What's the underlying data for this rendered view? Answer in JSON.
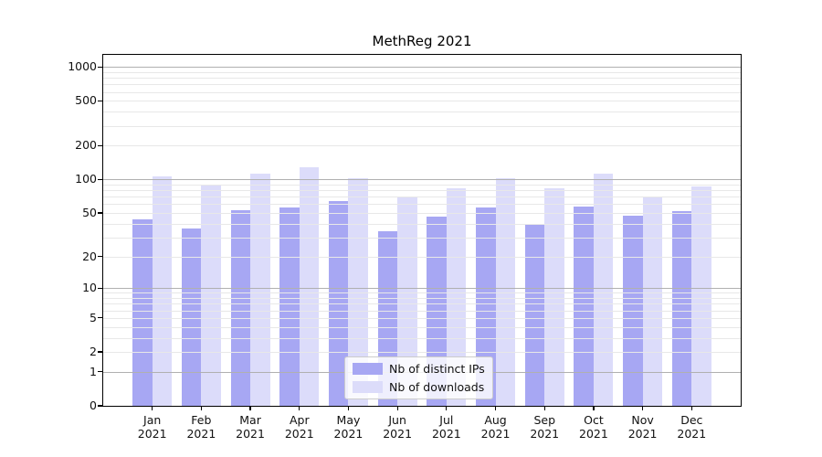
{
  "title": "MethReg 2021",
  "chart_data": {
    "type": "bar",
    "title": "MethReg 2021",
    "categories": [
      "Jan 2021",
      "Feb 2021",
      "Mar 2021",
      "Apr 2021",
      "May 2021",
      "Jun 2021",
      "Jul 2021",
      "Aug 2021",
      "Sep 2021",
      "Oct 2021",
      "Nov 2021",
      "Dec 2021"
    ],
    "series": [
      {
        "name": "Nb of distinct IPs",
        "color": "#a7a7f3",
        "values": [
          44,
          36,
          53,
          56,
          64,
          34,
          46,
          56,
          40,
          57,
          47,
          52
        ]
      },
      {
        "name": "Nb of downloads",
        "color": "#dcdcfa",
        "values": [
          106,
          90,
          112,
          128,
          103,
          70,
          84,
          103,
          84,
          112,
          69,
          87
        ]
      }
    ],
    "xlabel": "",
    "ylabel": "",
    "yscale": "log1p",
    "ylim": [
      0,
      1280
    ],
    "ytick_labels": [
      "1000",
      "500",
      "200",
      "100",
      "50",
      "20",
      "10",
      "5",
      "2",
      "1",
      "0"
    ],
    "major_grid_values": [
      1,
      10,
      100,
      1000
    ],
    "grid": true,
    "legend_position": "lower center"
  },
  "colors": {
    "bar_distinct_ips": "#a7a7f3",
    "bar_downloads": "#dcdcfa",
    "major_grid": "#b0b0b0",
    "minor_grid": "#e8e8e8",
    "axis": "#000000",
    "background": "#ffffff"
  }
}
